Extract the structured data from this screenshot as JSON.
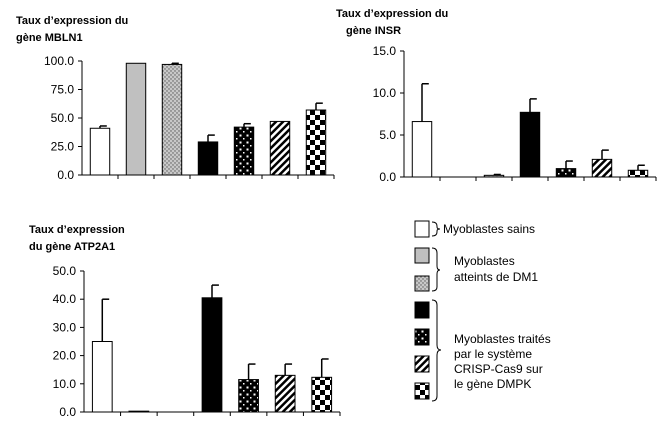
{
  "legend": {
    "groups": [
      {
        "lines": [
          "Myoblastes sains"
        ],
        "swatches": [
          "plain"
        ]
      },
      {
        "lines": [
          "Myoblastes",
          "atteints de DM1"
        ],
        "swatches": [
          "gray",
          "dots"
        ]
      },
      {
        "lines": [
          "Myoblastes traités",
          "par le système",
          "CRISP-Cas9 sur",
          "le gène DMPK"
        ],
        "swatches": [
          "black",
          "blackdots",
          "stripes",
          "checker"
        ]
      }
    ]
  },
  "chart_data": [
    {
      "type": "bar",
      "title_lines": [
        "Taux d’expression du",
        "gène MBLN1"
      ],
      "xlabel": "",
      "ylabel": "",
      "ylim": [
        0,
        100
      ],
      "yticks": [
        "0.0",
        "25.0",
        "50.0",
        "75.0",
        "100.0"
      ],
      "values": [
        41,
        98,
        97,
        29,
        42,
        47,
        57
      ],
      "errors": [
        2,
        0,
        1,
        6,
        3,
        0,
        6
      ],
      "patterns": [
        "plain",
        "gray",
        "dots",
        "black",
        "blackdots",
        "stripes",
        "checker"
      ]
    },
    {
      "type": "bar",
      "title_lines": [
        "Taux d’expression du",
        "gène INSR"
      ],
      "xlabel": "",
      "ylabel": "",
      "ylim": [
        0,
        15
      ],
      "yticks": [
        "0.0",
        "5.0",
        "10.0",
        "15.0"
      ],
      "values": [
        6.6,
        0,
        0.2,
        7.7,
        1.0,
        2.1,
        0.8
      ],
      "errors": [
        4.5,
        0,
        0.1,
        1.6,
        0.9,
        1.1,
        0.6
      ],
      "patterns": [
        "plain",
        "gray",
        "dots",
        "black",
        "blackdots",
        "stripes",
        "checker"
      ]
    },
    {
      "type": "bar",
      "title_lines": [
        "Taux d’expression",
        "du gène ATP2A1"
      ],
      "xlabel": "",
      "ylabel": "",
      "ylim": [
        0,
        50
      ],
      "yticks": [
        "0.0",
        "10.0",
        "20.0",
        "30.0",
        "40.0",
        "50.0"
      ],
      "values": [
        25,
        0.3,
        0,
        40.5,
        11.5,
        13,
        12.3
      ],
      "errors": [
        15,
        0,
        0,
        4.5,
        5.5,
        4,
        6.5
      ],
      "patterns": [
        "plain",
        "gray",
        "dots",
        "black",
        "blackdots",
        "stripes",
        "checker"
      ]
    }
  ]
}
